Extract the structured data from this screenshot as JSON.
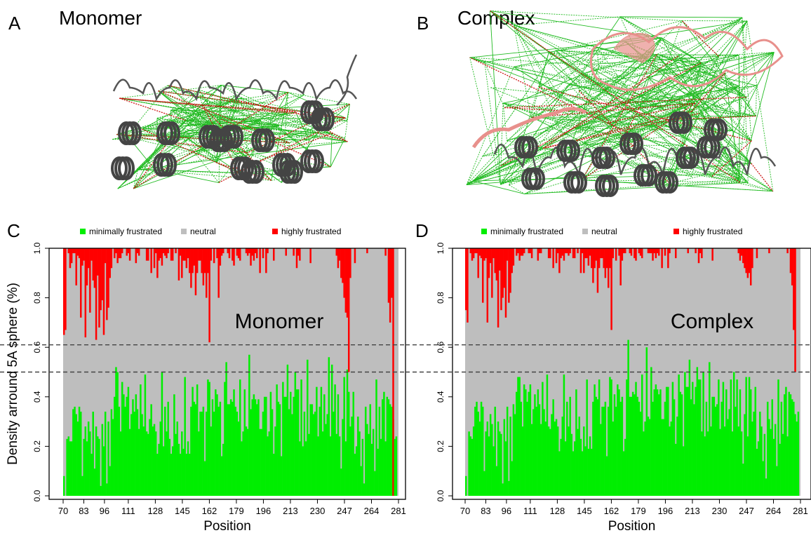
{
  "panels": {
    "a": {
      "letter": "A",
      "title": "Monomer"
    },
    "b": {
      "letter": "B",
      "title": "Complex"
    },
    "c": {
      "letter": "C"
    },
    "d": {
      "letter": "D"
    }
  },
  "legend": {
    "minimal": "minimally frustrated",
    "neutral": "neutral",
    "high": "highly frustrated"
  },
  "colors": {
    "minimal": "#00ee00",
    "neutral": "#bebebe",
    "high": "#ff0000",
    "threshold": "#444444",
    "backbone": "#555555",
    "partner": "#e8908c",
    "green_contact": "#22bb22",
    "red_contact": "#cc1111"
  },
  "chart_data": [
    {
      "type": "bar",
      "annotation": "Monomer",
      "xlabel": "Position",
      "ylabel": "Density arround 5A sphere (%)",
      "x_tick_labels": [
        "70",
        "83",
        "96",
        "111",
        "128",
        "145",
        "162",
        "179",
        "196",
        "213",
        "230",
        "247",
        "264",
        "281"
      ],
      "y_tick_labels": [
        "0.0",
        "0.2",
        "0.4",
        "0.6",
        "0.8",
        "1.0"
      ],
      "ylim": [
        0,
        1
      ],
      "xlim": [
        70,
        281
      ],
      "threshold_lines": [
        0.61,
        0.5
      ],
      "series": [
        {
          "name": "minimally frustrated",
          "values": [
            0.08,
            0.0,
            0.23,
            0.24,
            0.22,
            0.22,
            0.35,
            0.36,
            0.33,
            0.3,
            0.36,
            0.34,
            0.08,
            0.23,
            0.28,
            0.22,
            0.3,
            0.26,
            0.17,
            0.34,
            0.11,
            0.28,
            0.24,
            0.23,
            0.04,
            0.29,
            0.2,
            0.34,
            0.05,
            0.3,
            0.12,
            0.35,
            0.31,
            0.4,
            0.52,
            0.5,
            0.36,
            0.26,
            0.46,
            0.41,
            0.36,
            0.4,
            0.44,
            0.27,
            0.33,
            0.39,
            0.34,
            0.41,
            0.35,
            0.27,
            0.45,
            0.33,
            0.28,
            0.49,
            0.26,
            0.25,
            0.31,
            0.37,
            0.28,
            0.29,
            0.26,
            0.17,
            0.21,
            0.3,
            0.5,
            0.2,
            0.36,
            0.26,
            0.38,
            0.23,
            0.17,
            0.2,
            0.41,
            0.25,
            0.3,
            0.21,
            0.17,
            0.26,
            0.19,
            0.48,
            0.17,
            0.22,
            0.17,
            0.36,
            0.44,
            0.38,
            0.37,
            0.45,
            0.26,
            0.34,
            0.34,
            0.36,
            0.14,
            0.34,
            0.47,
            0.46,
            0.28,
            0.39,
            0.34,
            0.43,
            0.41,
            0.36,
            0.38,
            0.16,
            0.21,
            0.46,
            0.54,
            0.37,
            0.37,
            0.39,
            0.38,
            0.43,
            0.36,
            0.34,
            0.3,
            0.47,
            0.22,
            0.26,
            0.43,
            0.28,
            0.27,
            0.57,
            0.35,
            0.39,
            0.41,
            0.39,
            0.37,
            0.39,
            0.27,
            0.27,
            0.34,
            0.4,
            0.4,
            0.24,
            0.26,
            0.42,
            0.35,
            0.17,
            0.28,
            0.45,
            0.38,
            0.37,
            0.16,
            0.46,
            0.4,
            0.4,
            0.53,
            0.35,
            0.42,
            0.33,
            0.4,
            0.5,
            0.43,
            0.43,
            0.22,
            0.47,
            0.2,
            0.34,
            0.22,
            0.55,
            0.25,
            0.37,
            0.37,
            0.33,
            0.34,
            0.44,
            0.24,
            0.36,
            0.44,
            0.26,
            0.41,
            0.29,
            0.33,
            0.56,
            0.24,
            0.53,
            0.34,
            0.45,
            0.25,
            0.41,
            0.24,
            0.11,
            0.31,
            0.48,
            0.22,
            0.51,
            0.42,
            0.28,
            0.32,
            0.42,
            0.17,
            0.2,
            0.32,
            0.26,
            0.12,
            0.23,
            0.05,
            0.36,
            0.29,
            0.25,
            0.37,
            0.21,
            0.27,
            0.1,
            0.47,
            0.19,
            0.36,
            0.23,
            0.39,
            0.42,
            0.22,
            0.4,
            0.39,
            0.37,
            0.36,
            0.31,
            0.23,
            0.24,
            0.0
          ]
        },
        {
          "name": "highly frustrated",
          "values": [
            0.35,
            0.33,
            0.0,
            0.02,
            0.08,
            0.06,
            0.02,
            0.02,
            0.15,
            0.03,
            0.04,
            0.28,
            0.07,
            0.05,
            0.36,
            0.15,
            0.08,
            0.26,
            0.05,
            0.13,
            0.16,
            0.37,
            0.11,
            0.32,
            0.25,
            0.21,
            0.35,
            0.06,
            0.29,
            0.24,
            0.12,
            0.08,
            0.0,
            0.04,
            0.02,
            0.06,
            0.04,
            0.04,
            0.02,
            0.0,
            0.0,
            0.03,
            0.02,
            0.05,
            0.0,
            0.0,
            0.0,
            0.06,
            0.02,
            0.03,
            0.0,
            0.0,
            0.0,
            0.0,
            0.05,
            0.05,
            0.0,
            0.1,
            0.0,
            0.08,
            0.02,
            0.12,
            0.05,
            0.04,
            0.07,
            0.02,
            0.03,
            0.04,
            0.02,
            0.0,
            0.05,
            0.05,
            0.0,
            0.02,
            0.0,
            0.13,
            0.03,
            0.12,
            0.05,
            0.05,
            0.08,
            0.04,
            0.1,
            0.16,
            0.1,
            0.07,
            0.19,
            0.1,
            0.05,
            0.05,
            0.1,
            0.15,
            0.1,
            0.2,
            0.1,
            0.38,
            0.05,
            0.0,
            0.06,
            0.0,
            0.04,
            0.2,
            0.07,
            0.03,
            0.02,
            0.0,
            0.0,
            0.02,
            0.04,
            0.0,
            0.05,
            0.07,
            0.0,
            0.03,
            0.04,
            0.05,
            0.0,
            0.0,
            0.0,
            0.02,
            0.03,
            0.02,
            0.07,
            0.03,
            0.05,
            0.02,
            0.04,
            0.0,
            0.1,
            0.0,
            0.04,
            0.0,
            0.1,
            0.02,
            0.0,
            0.0,
            0.0,
            0.05,
            0.0,
            0.0,
            0.0,
            0.0,
            0.0,
            0.0,
            0.0,
            0.03,
            0.0,
            0.0,
            0.0,
            0.0,
            0.03,
            0.0,
            0.08,
            0.03,
            0.05,
            0.0,
            0.0,
            0.0,
            0.0,
            0.0,
            0.0,
            0.06,
            0.0,
            0.0,
            0.0,
            0.0,
            0.0,
            0.0,
            0.0,
            0.0,
            0.0,
            0.0,
            0.0,
            0.0,
            0.0,
            0.0,
            0.0,
            0.0,
            0.03,
            0.08,
            0.05,
            0.12,
            0.14,
            0.2,
            0.26,
            0.28,
            0.5,
            0.12,
            0.0,
            0.0,
            0.06,
            0.0,
            0.0,
            0.0,
            0.0,
            0.0,
            0.0,
            0.0,
            0.02,
            0.0,
            0.0,
            0.0,
            0.0,
            0.0,
            0.0,
            0.0,
            0.0,
            0.0,
            0.0,
            0.0,
            0.03,
            0.0,
            0.22,
            0.3,
            0.2,
            1.0
          ]
        }
      ]
    },
    {
      "type": "bar",
      "annotation": "Complex",
      "xlabel": "Position",
      "ylabel": "",
      "x_tick_labels": [
        "70",
        "83",
        "96",
        "111",
        "128",
        "145",
        "162",
        "179",
        "196",
        "213",
        "230",
        "247",
        "264",
        "281"
      ],
      "y_tick_labels": [
        "0.0",
        "0.2",
        "0.4",
        "0.6",
        "0.8",
        "1.0"
      ],
      "ylim": [
        0,
        1
      ],
      "xlim": [
        70,
        281
      ],
      "threshold_lines": [
        0.61,
        0.5
      ],
      "series": [
        {
          "name": "minimally frustrated",
          "values": [
            0.08,
            0.0,
            0.26,
            0.24,
            0.23,
            0.28,
            0.36,
            0.38,
            0.34,
            0.3,
            0.38,
            0.36,
            0.1,
            0.26,
            0.3,
            0.24,
            0.33,
            0.29,
            0.2,
            0.36,
            0.12,
            0.3,
            0.26,
            0.25,
            0.05,
            0.31,
            0.22,
            0.36,
            0.06,
            0.32,
            0.14,
            0.37,
            0.33,
            0.42,
            0.48,
            0.48,
            0.38,
            0.28,
            0.45,
            0.43,
            0.38,
            0.42,
            0.45,
            0.29,
            0.35,
            0.41,
            0.36,
            0.43,
            0.37,
            0.29,
            0.46,
            0.35,
            0.3,
            0.49,
            0.28,
            0.27,
            0.33,
            0.39,
            0.3,
            0.31,
            0.28,
            0.18,
            0.23,
            0.32,
            0.49,
            0.22,
            0.38,
            0.28,
            0.4,
            0.25,
            0.18,
            0.22,
            0.43,
            0.27,
            0.32,
            0.23,
            0.18,
            0.28,
            0.2,
            0.47,
            0.19,
            0.24,
            0.19,
            0.38,
            0.45,
            0.4,
            0.39,
            0.47,
            0.29,
            0.36,
            0.36,
            0.38,
            0.16,
            0.36,
            0.48,
            0.47,
            0.3,
            0.41,
            0.36,
            0.45,
            0.43,
            0.38,
            0.4,
            0.18,
            0.23,
            0.47,
            0.63,
            0.4,
            0.4,
            0.42,
            0.41,
            0.46,
            0.4,
            0.38,
            0.34,
            0.49,
            0.26,
            0.3,
            0.6,
            0.32,
            0.31,
            0.52,
            0.38,
            0.43,
            0.45,
            0.43,
            0.41,
            0.43,
            0.31,
            0.31,
            0.38,
            0.44,
            0.44,
            0.28,
            0.3,
            0.46,
            0.39,
            0.21,
            0.32,
            0.49,
            0.42,
            0.41,
            0.2,
            0.5,
            0.44,
            0.44,
            0.55,
            0.39,
            0.46,
            0.37,
            0.44,
            0.52,
            0.47,
            0.47,
            0.26,
            0.5,
            0.24,
            0.38,
            0.26,
            0.54,
            0.28,
            0.4,
            0.4,
            0.36,
            0.37,
            0.47,
            0.27,
            0.38,
            0.46,
            0.28,
            0.43,
            0.31,
            0.35,
            0.47,
            0.26,
            0.5,
            0.36,
            0.47,
            0.28,
            0.43,
            0.26,
            0.13,
            0.33,
            0.48,
            0.24,
            0.48,
            0.43,
            0.3,
            0.34,
            0.44,
            0.19,
            0.22,
            0.34,
            0.28,
            0.14,
            0.25,
            0.07,
            0.38,
            0.31,
            0.27,
            0.39,
            0.23,
            0.29,
            0.12,
            0.47,
            0.21,
            0.38,
            0.25,
            0.41,
            0.44,
            0.24,
            0.42,
            0.41,
            0.39,
            0.38,
            0.33,
            0.3,
            0.34,
            0.0
          ]
        },
        {
          "name": "highly frustrated",
          "values": [
            0.25,
            0.3,
            0.0,
            0.02,
            0.05,
            0.04,
            0.02,
            0.02,
            0.12,
            0.03,
            0.04,
            0.22,
            0.05,
            0.04,
            0.3,
            0.12,
            0.06,
            0.2,
            0.04,
            0.1,
            0.13,
            0.32,
            0.09,
            0.25,
            0.2,
            0.16,
            0.28,
            0.05,
            0.22,
            0.18,
            0.1,
            0.07,
            0.0,
            0.03,
            0.02,
            0.05,
            0.03,
            0.03,
            0.02,
            0.0,
            0.0,
            0.02,
            0.02,
            0.04,
            0.0,
            0.0,
            0.0,
            0.05,
            0.02,
            0.02,
            0.0,
            0.0,
            0.0,
            0.0,
            0.04,
            0.04,
            0.0,
            0.08,
            0.0,
            0.06,
            0.02,
            0.1,
            0.04,
            0.03,
            0.05,
            0.02,
            0.02,
            0.03,
            0.02,
            0.0,
            0.04,
            0.04,
            0.0,
            0.02,
            0.0,
            0.1,
            0.02,
            0.1,
            0.04,
            0.04,
            0.07,
            0.03,
            0.08,
            0.14,
            0.08,
            0.05,
            0.18,
            0.08,
            0.04,
            0.04,
            0.08,
            0.12,
            0.08,
            0.16,
            0.08,
            0.33,
            0.04,
            0.0,
            0.05,
            0.0,
            0.03,
            0.15,
            0.05,
            0.02,
            0.02,
            0.0,
            0.0,
            0.02,
            0.03,
            0.0,
            0.04,
            0.05,
            0.0,
            0.02,
            0.03,
            0.04,
            0.0,
            0.0,
            0.0,
            0.02,
            0.02,
            0.02,
            0.05,
            0.02,
            0.04,
            0.02,
            0.03,
            0.0,
            0.08,
            0.0,
            0.03,
            0.0,
            0.08,
            0.02,
            0.0,
            0.0,
            0.0,
            0.04,
            0.0,
            0.0,
            0.0,
            0.0,
            0.0,
            0.0,
            0.0,
            0.02,
            0.0,
            0.0,
            0.0,
            0.0,
            0.02,
            0.0,
            0.06,
            0.02,
            0.04,
            0.0,
            0.0,
            0.0,
            0.0,
            0.0,
            0.0,
            0.05,
            0.0,
            0.0,
            0.0,
            0.0,
            0.0,
            0.0,
            0.0,
            0.0,
            0.0,
            0.0,
            0.0,
            0.0,
            0.0,
            0.0,
            0.0,
            0.0,
            0.02,
            0.05,
            0.03,
            0.06,
            0.08,
            0.1,
            0.12,
            0.1,
            0.15,
            0.08,
            0.0,
            0.0,
            0.04,
            0.0,
            0.0,
            0.0,
            0.0,
            0.0,
            0.0,
            0.0,
            0.02,
            0.0,
            0.0,
            0.0,
            0.0,
            0.0,
            0.0,
            0.0,
            0.0,
            0.0,
            0.0,
            0.0,
            0.02,
            0.0,
            0.1,
            0.15,
            0.33,
            0.5
          ]
        }
      ]
    }
  ]
}
